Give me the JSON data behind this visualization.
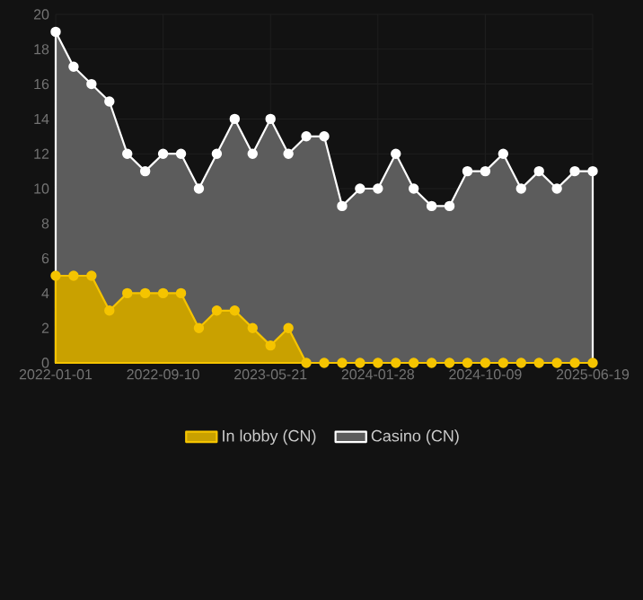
{
  "chart_data": {
    "type": "area",
    "categories": [
      "2022-01-01",
      null,
      null,
      null,
      null,
      null,
      "2022-09-10",
      null,
      null,
      null,
      null,
      null,
      "2023-05-21",
      null,
      null,
      null,
      null,
      null,
      "2024-01-28",
      null,
      null,
      null,
      null,
      null,
      "2024-10-09",
      null,
      null,
      null,
      null,
      null,
      "2025-06-19"
    ],
    "series": [
      {
        "name": "In lobby (CN)",
        "color": "#f5c400",
        "values": [
          5,
          5,
          5,
          3,
          4,
          4,
          4,
          4,
          2,
          3,
          3,
          2,
          1,
          2,
          0,
          0,
          0,
          0,
          0,
          0,
          0,
          0,
          0,
          0,
          0,
          0,
          0,
          0,
          0,
          0,
          0
        ]
      },
      {
        "name": "Casino (CN)",
        "color": "#ffffff",
        "values": [
          19,
          17,
          16,
          15,
          12,
          11,
          12,
          12,
          10,
          12,
          14,
          12,
          14,
          12,
          13,
          13,
          9,
          10,
          10,
          12,
          10,
          9,
          9,
          11,
          11,
          12,
          10,
          11,
          10,
          11,
          11
        ]
      }
    ],
    "ylim": [
      0,
      20
    ],
    "yticks": [
      0,
      2,
      4,
      6,
      8,
      10,
      12,
      14,
      16,
      18,
      20
    ],
    "grid": true,
    "legend": "bottom",
    "marker": "circle",
    "line_style": "solid"
  }
}
